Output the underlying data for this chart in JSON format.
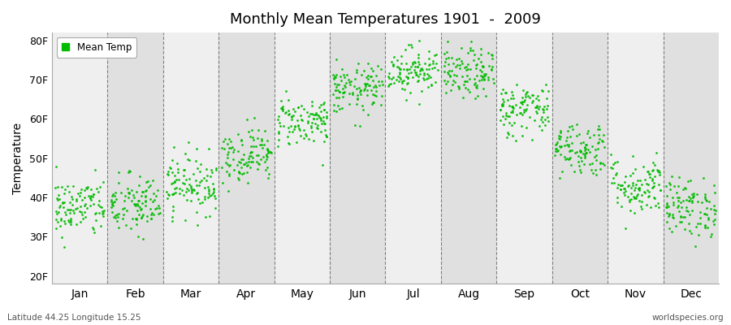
{
  "title": "Monthly Mean Temperatures 1901  -  2009",
  "ylabel": "Temperature",
  "xlabel_months": [
    "Jan",
    "Feb",
    "Mar",
    "Apr",
    "May",
    "Jun",
    "Jul",
    "Aug",
    "Sep",
    "Oct",
    "Nov",
    "Dec"
  ],
  "ytick_labels": [
    "20F",
    "30F",
    "40F",
    "50F",
    "60F",
    "70F",
    "80F"
  ],
  "ytick_values": [
    20,
    30,
    40,
    50,
    60,
    70,
    80
  ],
  "ylim": [
    18,
    82
  ],
  "legend_label": "Mean Temp",
  "dot_color": "#00bb00",
  "dot_size": 4,
  "background_color": "#ffffff",
  "plot_bg_dark": "#e0e0e0",
  "plot_bg_light": "#efefef",
  "grid_color": "#666666",
  "bottom_left_text": "Latitude 44.25 Longitude 15.25",
  "bottom_right_text": "worldspecies.org",
  "monthly_means": [
    37.5,
    38.0,
    43.5,
    51.0,
    59.5,
    67.5,
    72.5,
    71.5,
    62.5,
    52.5,
    43.0,
    37.5
  ],
  "monthly_stds": [
    3.8,
    4.0,
    3.8,
    3.5,
    3.2,
    3.2,
    3.0,
    3.2,
    3.5,
    3.5,
    3.8,
    3.8
  ],
  "n_years": 109,
  "seed": 42
}
